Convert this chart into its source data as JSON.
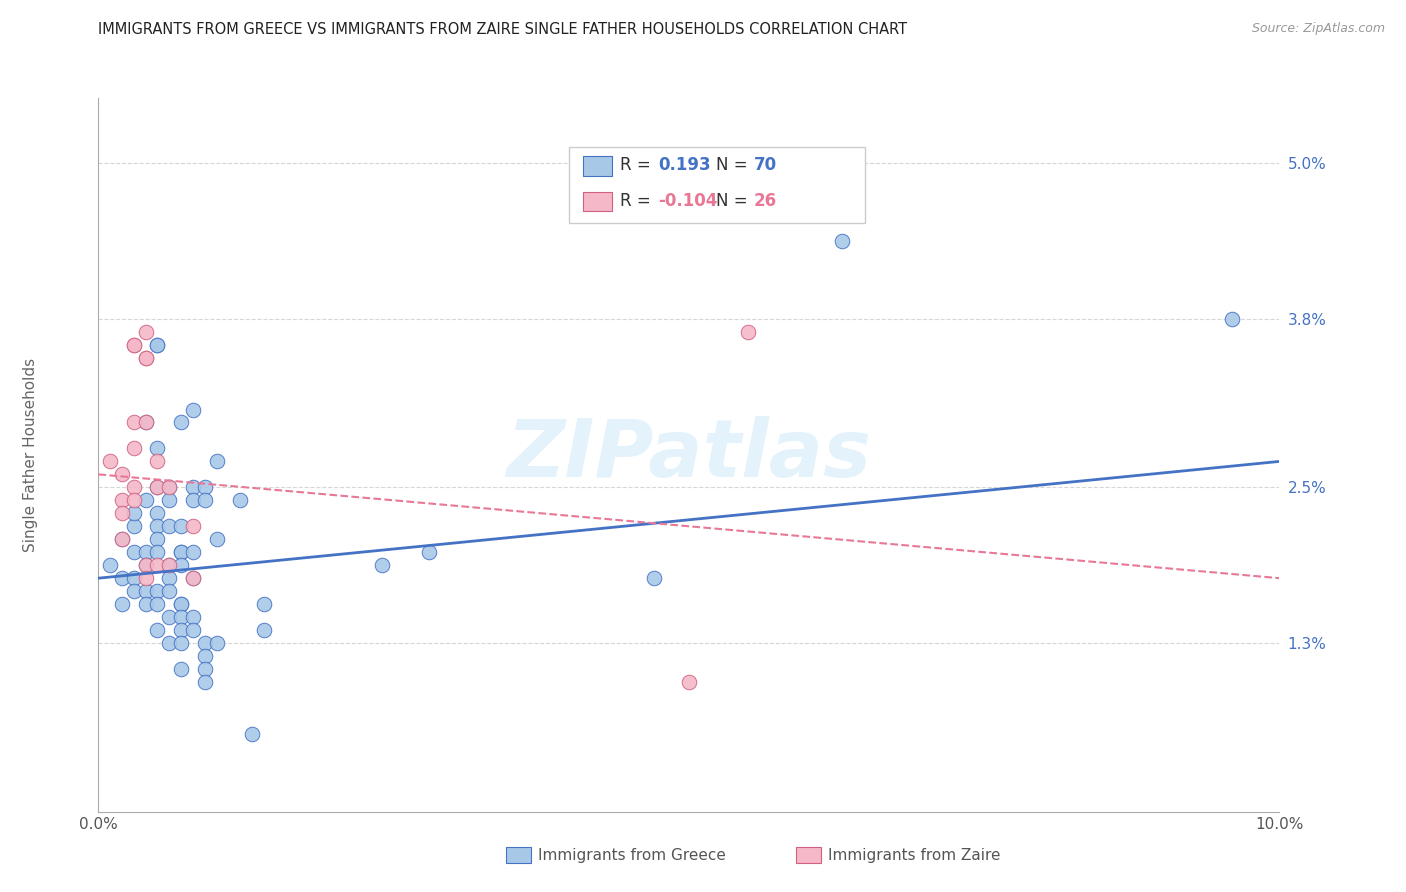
{
  "title": "IMMIGRANTS FROM GREECE VS IMMIGRANTS FROM ZAIRE SINGLE FATHER HOUSEHOLDS CORRELATION CHART",
  "source": "Source: ZipAtlas.com",
  "ylabel": "Single Father Households",
  "x_min": 0.0,
  "x_max": 0.1,
  "y_min": 0.0,
  "y_max": 0.055,
  "y_ticks": [
    0.013,
    0.025,
    0.038,
    0.05
  ],
  "y_tick_labels": [
    "1.3%",
    "2.5%",
    "3.8%",
    "5.0%"
  ],
  "x_ticks": [
    0.0,
    0.02,
    0.04,
    0.06,
    0.08,
    0.1
  ],
  "x_tick_labels": [
    "0.0%",
    "",
    "",
    "",
    "",
    "10.0%"
  ],
  "color_greece": "#a8c8e8",
  "color_zaire": "#f4b8c8",
  "color_line_greece": "#4472c4",
  "color_line_zaire": "#e87896",
  "greece_scatter": [
    [
      0.001,
      0.019
    ],
    [
      0.002,
      0.021
    ],
    [
      0.002,
      0.018
    ],
    [
      0.002,
      0.016
    ],
    [
      0.003,
      0.022
    ],
    [
      0.003,
      0.02
    ],
    [
      0.003,
      0.018
    ],
    [
      0.003,
      0.017
    ],
    [
      0.003,
      0.023
    ],
    [
      0.004,
      0.024
    ],
    [
      0.004,
      0.02
    ],
    [
      0.004,
      0.019
    ],
    [
      0.004,
      0.03
    ],
    [
      0.004,
      0.017
    ],
    [
      0.004,
      0.016
    ],
    [
      0.005,
      0.036
    ],
    [
      0.005,
      0.036
    ],
    [
      0.005,
      0.028
    ],
    [
      0.005,
      0.025
    ],
    [
      0.005,
      0.023
    ],
    [
      0.005,
      0.022
    ],
    [
      0.005,
      0.021
    ],
    [
      0.005,
      0.02
    ],
    [
      0.005,
      0.017
    ],
    [
      0.005,
      0.016
    ],
    [
      0.005,
      0.014
    ],
    [
      0.006,
      0.025
    ],
    [
      0.006,
      0.024
    ],
    [
      0.006,
      0.022
    ],
    [
      0.006,
      0.019
    ],
    [
      0.006,
      0.018
    ],
    [
      0.006,
      0.017
    ],
    [
      0.006,
      0.015
    ],
    [
      0.006,
      0.013
    ],
    [
      0.007,
      0.03
    ],
    [
      0.007,
      0.022
    ],
    [
      0.007,
      0.02
    ],
    [
      0.007,
      0.02
    ],
    [
      0.007,
      0.019
    ],
    [
      0.007,
      0.016
    ],
    [
      0.007,
      0.016
    ],
    [
      0.007,
      0.015
    ],
    [
      0.007,
      0.014
    ],
    [
      0.007,
      0.013
    ],
    [
      0.007,
      0.011
    ],
    [
      0.008,
      0.031
    ],
    [
      0.008,
      0.025
    ],
    [
      0.008,
      0.024
    ],
    [
      0.008,
      0.02
    ],
    [
      0.008,
      0.018
    ],
    [
      0.008,
      0.015
    ],
    [
      0.008,
      0.014
    ],
    [
      0.009,
      0.025
    ],
    [
      0.009,
      0.024
    ],
    [
      0.009,
      0.013
    ],
    [
      0.009,
      0.012
    ],
    [
      0.009,
      0.011
    ],
    [
      0.009,
      0.01
    ],
    [
      0.01,
      0.027
    ],
    [
      0.01,
      0.021
    ],
    [
      0.01,
      0.013
    ],
    [
      0.012,
      0.024
    ],
    [
      0.013,
      0.006
    ],
    [
      0.014,
      0.016
    ],
    [
      0.014,
      0.014
    ],
    [
      0.024,
      0.019
    ],
    [
      0.028,
      0.02
    ],
    [
      0.047,
      0.018
    ],
    [
      0.063,
      0.044
    ],
    [
      0.096,
      0.038
    ]
  ],
  "zaire_scatter": [
    [
      0.001,
      0.027
    ],
    [
      0.002,
      0.026
    ],
    [
      0.002,
      0.024
    ],
    [
      0.002,
      0.023
    ],
    [
      0.002,
      0.021
    ],
    [
      0.003,
      0.036
    ],
    [
      0.003,
      0.036
    ],
    [
      0.003,
      0.03
    ],
    [
      0.003,
      0.028
    ],
    [
      0.003,
      0.025
    ],
    [
      0.003,
      0.024
    ],
    [
      0.004,
      0.037
    ],
    [
      0.004,
      0.035
    ],
    [
      0.004,
      0.035
    ],
    [
      0.004,
      0.03
    ],
    [
      0.004,
      0.019
    ],
    [
      0.004,
      0.018
    ],
    [
      0.005,
      0.027
    ],
    [
      0.005,
      0.025
    ],
    [
      0.005,
      0.019
    ],
    [
      0.006,
      0.025
    ],
    [
      0.006,
      0.019
    ],
    [
      0.008,
      0.022
    ],
    [
      0.008,
      0.018
    ],
    [
      0.05,
      0.01
    ],
    [
      0.055,
      0.037
    ]
  ],
  "greece_line_x": [
    0.0,
    0.1
  ],
  "greece_line_y": [
    0.018,
    0.027
  ],
  "zaire_line_x": [
    0.0,
    0.1
  ],
  "zaire_line_y": [
    0.026,
    0.018
  ]
}
